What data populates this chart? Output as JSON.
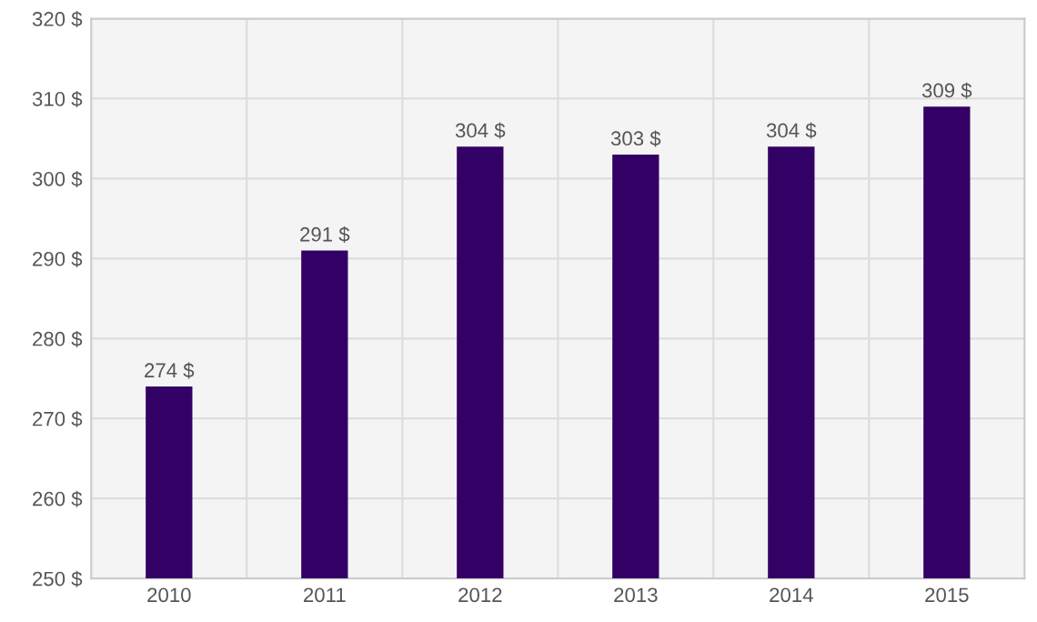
{
  "chart_data": {
    "type": "bar",
    "categories": [
      "2010",
      "2011",
      "2012",
      "2013",
      "2014",
      "2015"
    ],
    "values": [
      274,
      291,
      304,
      303,
      304,
      309
    ],
    "value_labels": [
      "274 $",
      "291 $",
      "304 $",
      "303 $",
      "304 $",
      "309 $"
    ],
    "color": "#330066",
    "ylim": [
      250,
      320
    ],
    "yticks": [
      {
        "value": 250,
        "label": "250 $"
      },
      {
        "value": 260,
        "label": "260 $"
      },
      {
        "value": 270,
        "label": "270 $"
      },
      {
        "value": 280,
        "label": "280 $"
      },
      {
        "value": 290,
        "label": "290 $"
      },
      {
        "value": 300,
        "label": "300 $"
      },
      {
        "value": 310,
        "label": "310 $"
      },
      {
        "value": 320,
        "label": "320 $"
      }
    ],
    "grid": true
  }
}
